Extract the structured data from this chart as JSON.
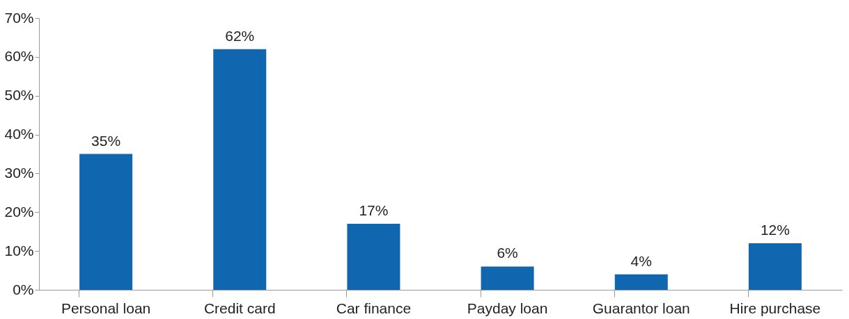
{
  "chart_data": {
    "type": "bar",
    "categories": [
      "Personal loan",
      "Credit card",
      "Car finance",
      "Payday loan",
      "Guarantor loan",
      "Hire purchase"
    ],
    "values": [
      35,
      62,
      17,
      6,
      4,
      12
    ],
    "value_labels": [
      "35%",
      "62%",
      "17%",
      "6%",
      "4%",
      "12%"
    ],
    "color": "#1166b0",
    "ylim": [
      0,
      70
    ],
    "yticks": [
      {
        "value": 0,
        "label": "0%"
      },
      {
        "value": 10,
        "label": "10%"
      },
      {
        "value": 20,
        "label": "20%"
      },
      {
        "value": 30,
        "label": "30%"
      },
      {
        "value": 40,
        "label": "40%"
      },
      {
        "value": 50,
        "label": "50%"
      },
      {
        "value": 60,
        "label": "60%"
      },
      {
        "value": 70,
        "label": "70%"
      }
    ],
    "grid": false
  }
}
